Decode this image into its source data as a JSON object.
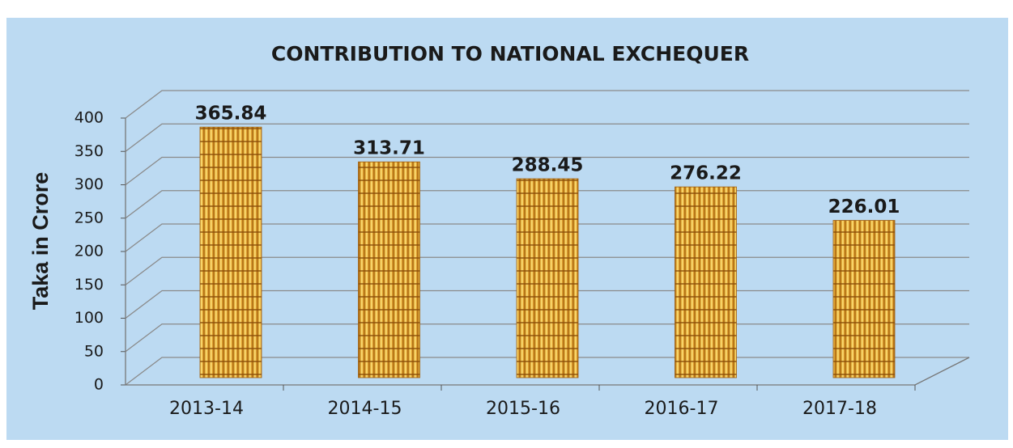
{
  "chart_data": {
    "type": "bar",
    "title": "CONTRIBUTION TO NATIONAL EXCHEQUER",
    "y_label": "Taka in Crore",
    "categories": [
      "2013-14",
      "2014-15",
      "2015-16",
      "2016-17",
      "2017-18"
    ],
    "values": [
      365.84,
      313.71,
      288.45,
      276.22,
      226.01
    ],
    "color": "#e0a32a",
    "ylim": [
      0,
      400
    ],
    "yticks": [
      0,
      50,
      100,
      150,
      200,
      250,
      300,
      350,
      400
    ],
    "grid": true
  }
}
